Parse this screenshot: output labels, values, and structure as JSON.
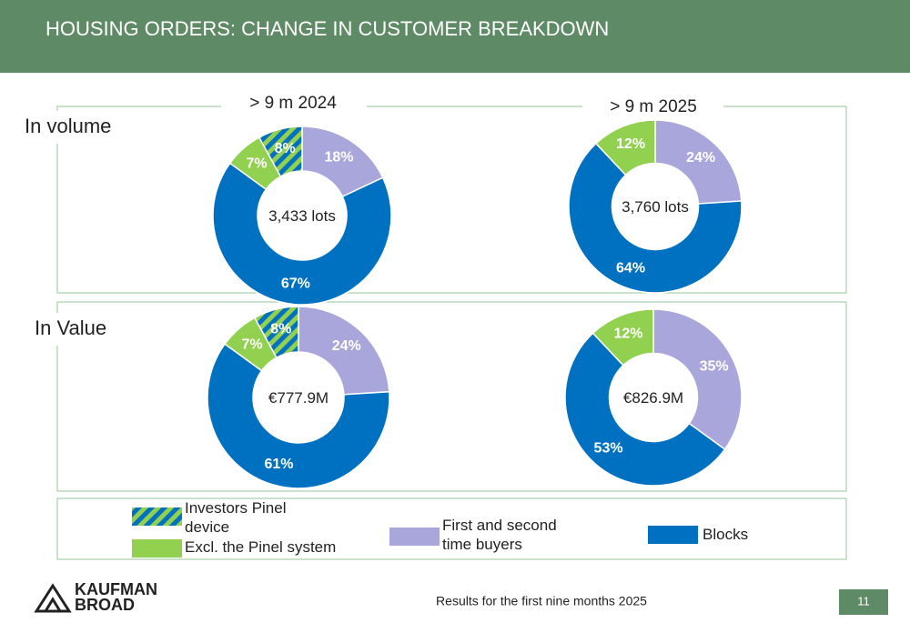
{
  "title": "HOUSING ORDERS: CHANGE IN CUSTOMER BREAKDOWN",
  "columns": [
    "> 9 m 2024",
    "> 9 m 2025"
  ],
  "rows": [
    "In volume",
    "In Value"
  ],
  "legend": [
    {
      "name": "Investors Pinel device",
      "color": "#92d050",
      "hatch_color": "#0070c0"
    },
    {
      "name": "Excl. the Pinel system",
      "color": "#92d050"
    },
    {
      "name": "First and second time buyers",
      "color": "#a9a6dc"
    },
    {
      "name": "Blocks",
      "color": "#0070c0"
    }
  ],
  "chart_data": [
    {
      "type": "donut",
      "center_label": "3,433 lots",
      "values": [
        18,
        67,
        7,
        8
      ],
      "value_labels": [
        "18%",
        "67%",
        "7%",
        "8%"
      ],
      "colors": [
        "#a9a6dc",
        "#0070c0",
        "#92d050",
        "#92d050"
      ],
      "hatch_colors": [
        null,
        null,
        null,
        "#0070c0"
      ]
    },
    {
      "type": "donut",
      "center_label": "3,760 lots",
      "values": [
        24,
        64,
        12
      ],
      "value_labels": [
        "24%",
        "64%",
        "12%"
      ],
      "colors": [
        "#a9a6dc",
        "#0070c0",
        "#92d050"
      ]
    },
    {
      "type": "donut",
      "center_label": "€777.9M",
      "values": [
        24,
        61,
        7,
        8
      ],
      "value_labels": [
        "24%",
        "61%",
        "7%",
        "8%"
      ],
      "colors": [
        "#a9a6dc",
        "#0070c0",
        "#92d050",
        "#92d050"
      ],
      "hatch_colors": [
        null,
        null,
        null,
        "#0070c0"
      ]
    },
    {
      "type": "donut",
      "center_label": "€826.9M",
      "values": [
        35,
        53,
        12
      ],
      "value_labels": [
        "35%",
        "53%",
        "12%"
      ],
      "colors": [
        "#a9a6dc",
        "#0070c0",
        "#92d050"
      ]
    }
  ],
  "logo": "KAUFMAN BROAD",
  "footer": "Results for the first nine months 2025",
  "page_number": "11"
}
